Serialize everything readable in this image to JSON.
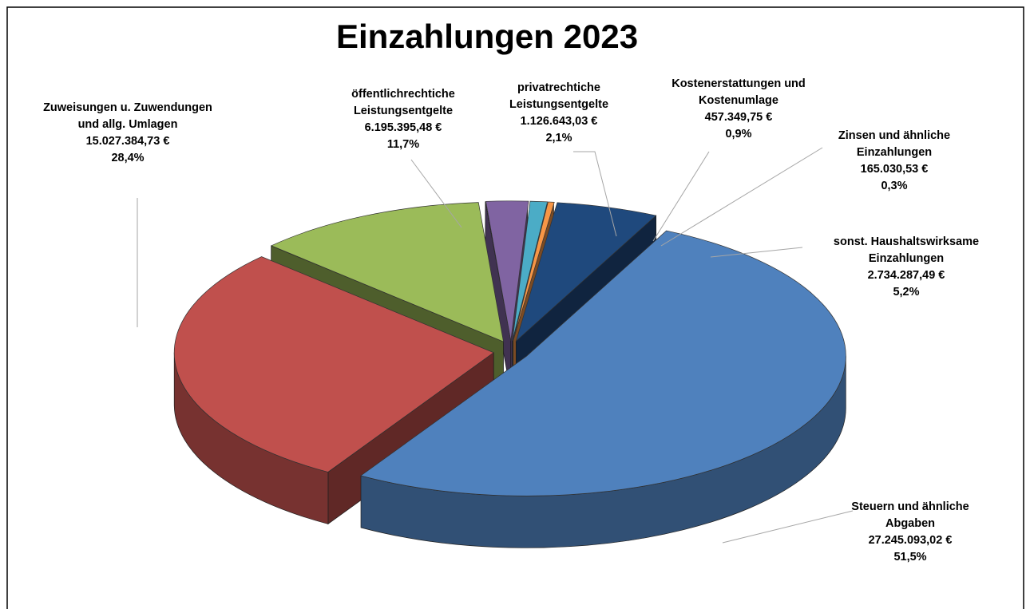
{
  "chart_data": {
    "type": "pie",
    "title": "Einzahlungen 2023",
    "categories": [
      "Steuern und ähnliche Abgaben",
      "Zuweisungen u. Zuwendungen und allg. Umlagen",
      "öffentlichrechtiche Leistungsentgelte",
      "privatrechtiche Leistungsentgelte",
      "Kostenerstattungen und Kostenumlage",
      "Zinsen und ähnliche Einzahlungen",
      "sonst. Haushaltswirksame Einzahlungen"
    ],
    "values": [
      27245093.02,
      15027384.73,
      6195395.48,
      1126643.03,
      457349.75,
      165030.53,
      2734287.49
    ],
    "value_labels": [
      "27.245.093,02 €",
      "15.027.384,73 €",
      "6.195.395,48 €",
      "1.126.643,03 €",
      "457.349,75 €",
      "165.030,53 €",
      "2.734.287,49 €"
    ],
    "percentages": [
      51.5,
      28.4,
      11.7,
      2.1,
      0.9,
      0.3,
      5.2
    ],
    "percentage_labels": [
      "51,5%",
      "28,4%",
      "11,7%",
      "2,1%",
      "0,9%",
      "0,3%",
      "5,2%"
    ],
    "colors": [
      "#4f81bd",
      "#c0504d",
      "#9bbb59",
      "#8064a2",
      "#4bacc6",
      "#f79646",
      "#1f497d"
    ]
  }
}
